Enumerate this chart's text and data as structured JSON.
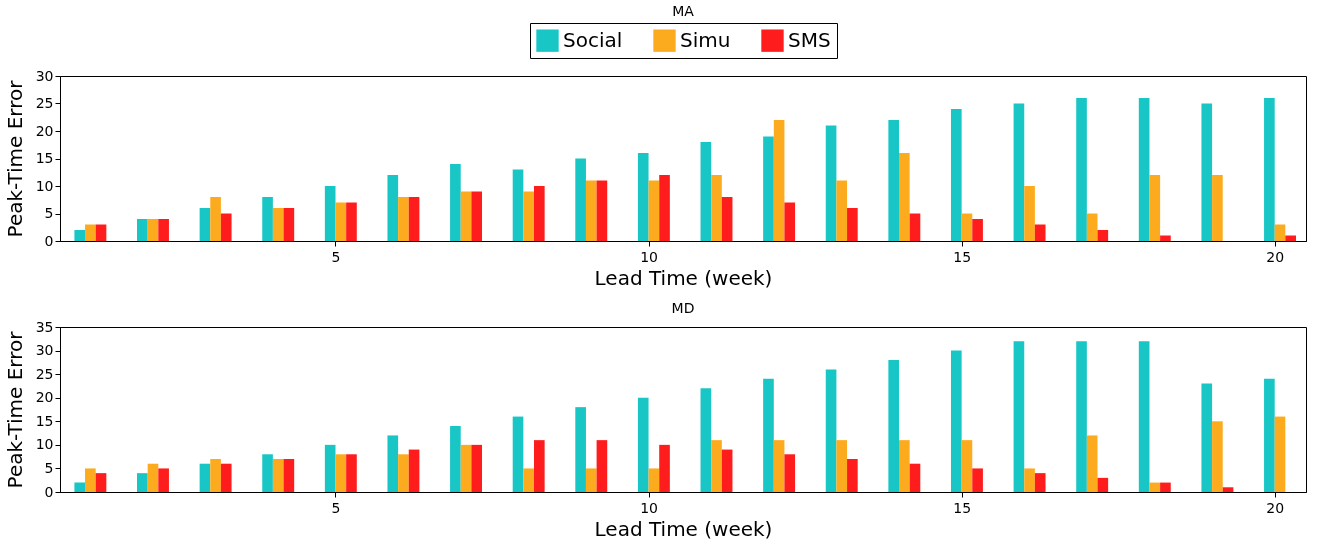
{
  "chart_data": [
    {
      "type": "bar",
      "title": "MA",
      "xlabel": "Lead Time (week)",
      "ylabel": "Peak-Time Error",
      "x": [
        1,
        2,
        3,
        4,
        5,
        6,
        7,
        8,
        9,
        10,
        11,
        12,
        13,
        14,
        15,
        16,
        17,
        18,
        19,
        20
      ],
      "xlim": [
        0.6,
        20.5
      ],
      "xticks": [
        5,
        10,
        15,
        20
      ],
      "ylim": [
        0,
        30
      ],
      "yticks": [
        0,
        5,
        10,
        15,
        20,
        25,
        30
      ],
      "grid": false,
      "legend": "top",
      "series": [
        {
          "name": "Social",
          "color": "#19c6c6",
          "values": [
            2,
            4,
            6,
            8,
            10,
            12,
            14,
            13,
            15,
            16,
            18,
            19,
            21,
            22,
            24,
            25,
            26,
            26,
            25,
            26
          ]
        },
        {
          "name": "Simu",
          "color": "#fdab1e",
          "values": [
            3,
            4,
            8,
            6,
            7,
            8,
            9,
            9,
            11,
            11,
            12,
            22,
            11,
            16,
            5,
            10,
            5,
            12,
            12,
            3
          ]
        },
        {
          "name": "SMS",
          "color": "#fe1c1c",
          "values": [
            3,
            4,
            5,
            6,
            7,
            8,
            9,
            10,
            11,
            12,
            8,
            7,
            6,
            5,
            4,
            3,
            2,
            1,
            0,
            1
          ]
        }
      ]
    },
    {
      "type": "bar",
      "title": "MD",
      "xlabel": "Lead Time (week)",
      "ylabel": "Peak-Time Error",
      "x": [
        1,
        2,
        3,
        4,
        5,
        6,
        7,
        8,
        9,
        10,
        11,
        12,
        13,
        14,
        15,
        16,
        17,
        18,
        19,
        20
      ],
      "xlim": [
        0.6,
        20.5
      ],
      "xticks": [
        5,
        10,
        15,
        20
      ],
      "ylim": [
        0,
        35
      ],
      "yticks": [
        0,
        5,
        10,
        15,
        20,
        25,
        30,
        35
      ],
      "grid": false,
      "series": [
        {
          "color": "#19c6c6",
          "values": [
            2,
            4,
            6,
            8,
            10,
            12,
            14,
            16,
            18,
            20,
            22,
            24,
            26,
            28,
            30,
            32,
            32,
            32,
            23,
            24
          ]
        },
        {
          "color": "#fdab1e",
          "values": [
            5,
            6,
            7,
            7,
            8,
            8,
            10,
            5,
            5,
            5,
            11,
            11,
            11,
            11,
            11,
            5,
            12,
            2,
            15,
            16
          ]
        },
        {
          "color": "#fe1c1c",
          "values": [
            4,
            5,
            6,
            7,
            8,
            9,
            10,
            11,
            11,
            10,
            9,
            8,
            7,
            6,
            5,
            4,
            3,
            2,
            1,
            0
          ]
        }
      ]
    }
  ]
}
